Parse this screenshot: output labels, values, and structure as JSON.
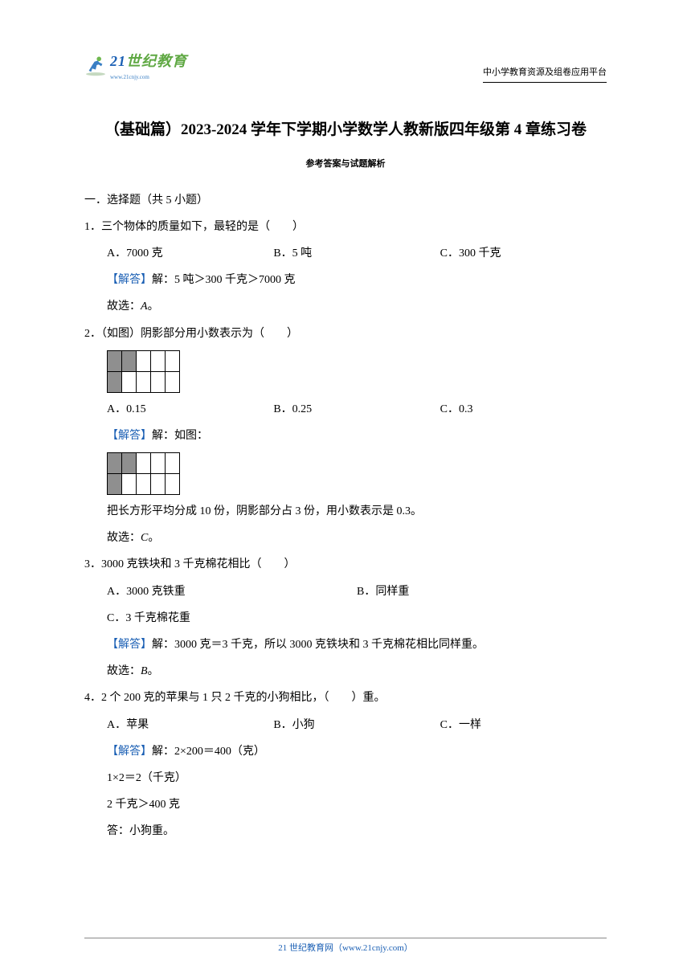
{
  "header": {
    "logo_text_1": "21",
    "logo_text_2": "世纪教育",
    "subtitle": "www.21cnjy.com",
    "right_text": "中小学教育资源及组卷应用平台"
  },
  "title": "（基础篇）2023-2024 学年下学期小学数学人教新版四年级第 4 章练习卷",
  "subtitle": "参考答案与试题解析",
  "section1": {
    "header": "一．选择题（共 5 小题）"
  },
  "q1": {
    "text": "1．三个物体的质量如下，最轻的是（　　）",
    "opt_a": "A．7000 克",
    "opt_b": "B．5 吨",
    "opt_c": "C．300 千克",
    "answer_label": "【解答】",
    "answer_text": "解：5 吨＞300 千克＞7000 克",
    "conclusion": "故选：",
    "conclusion_answer": "A",
    "conclusion_end": "。"
  },
  "q2": {
    "text": "2．（如图）阴影部分用小数表示为（　　）",
    "opt_a": "A．0.15",
    "opt_b": "B．0.25",
    "opt_c": "C．0.3",
    "answer_label": "【解答】",
    "answer_text": "解：如图：",
    "explain": "把长方形平均分成 10 份，阴影部分占 3 份，用小数表示是 0.3。",
    "conclusion": "故选：",
    "conclusion_answer": "C",
    "conclusion_end": "。",
    "grid": {
      "rows": 2,
      "cols": 5,
      "shaded": [
        [
          0,
          0
        ],
        [
          0,
          1
        ],
        [
          1,
          0
        ]
      ]
    }
  },
  "q3": {
    "text": "3．3000 克铁块和 3 千克棉花相比（　　）",
    "opt_a": "A．3000 克铁重",
    "opt_b": "B．同样重",
    "opt_c": "C．3 千克棉花重",
    "answer_label": "【解答】",
    "answer_text": "解：3000 克＝3 千克，所以 3000 克铁块和 3 千克棉花相比同样重。",
    "conclusion": "故选：",
    "conclusion_answer": "B",
    "conclusion_end": "。"
  },
  "q4": {
    "text": "4．2 个 200 克的苹果与 1 只 2 千克的小狗相比，（　　）重。",
    "opt_a": "A．苹果",
    "opt_b": "B．小狗",
    "opt_c": "C．一样",
    "answer_label": "【解答】",
    "answer_text": "解：2×200＝400（克）",
    "line2": "1×2＝2（千克）",
    "line3": "2 千克＞400 克",
    "line4": "答：小狗重。"
  },
  "footer": {
    "text": "21 世纪教育网（www.21cnjy.com）"
  },
  "colors": {
    "answer_blue": "#1a5fb4",
    "logo_green": "#5fa843",
    "logo_blue": "#1a5fb4",
    "grid_shaded": "#8f8f8f",
    "footer_blue": "#1a5fb4"
  }
}
